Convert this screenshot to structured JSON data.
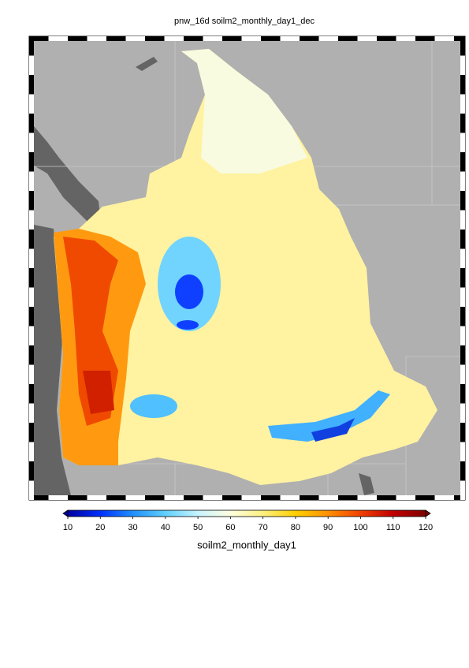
{
  "title": "pnw_16d soilm2_monthly_day1_dec",
  "colorbar": {
    "label": "soilm2_monthly_day1",
    "lim": [
      10,
      120
    ],
    "ticks": [
      10,
      20,
      30,
      40,
      50,
      60,
      70,
      80,
      90,
      100,
      110,
      120
    ],
    "colors": [
      "#0000a0",
      "#0030ff",
      "#2090ff",
      "#60d0ff",
      "#c8f4ff",
      "#ffffe0",
      "#fff080",
      "#ffd000",
      "#ff9000",
      "#f04000",
      "#c00000",
      "#800000"
    ]
  }
}
